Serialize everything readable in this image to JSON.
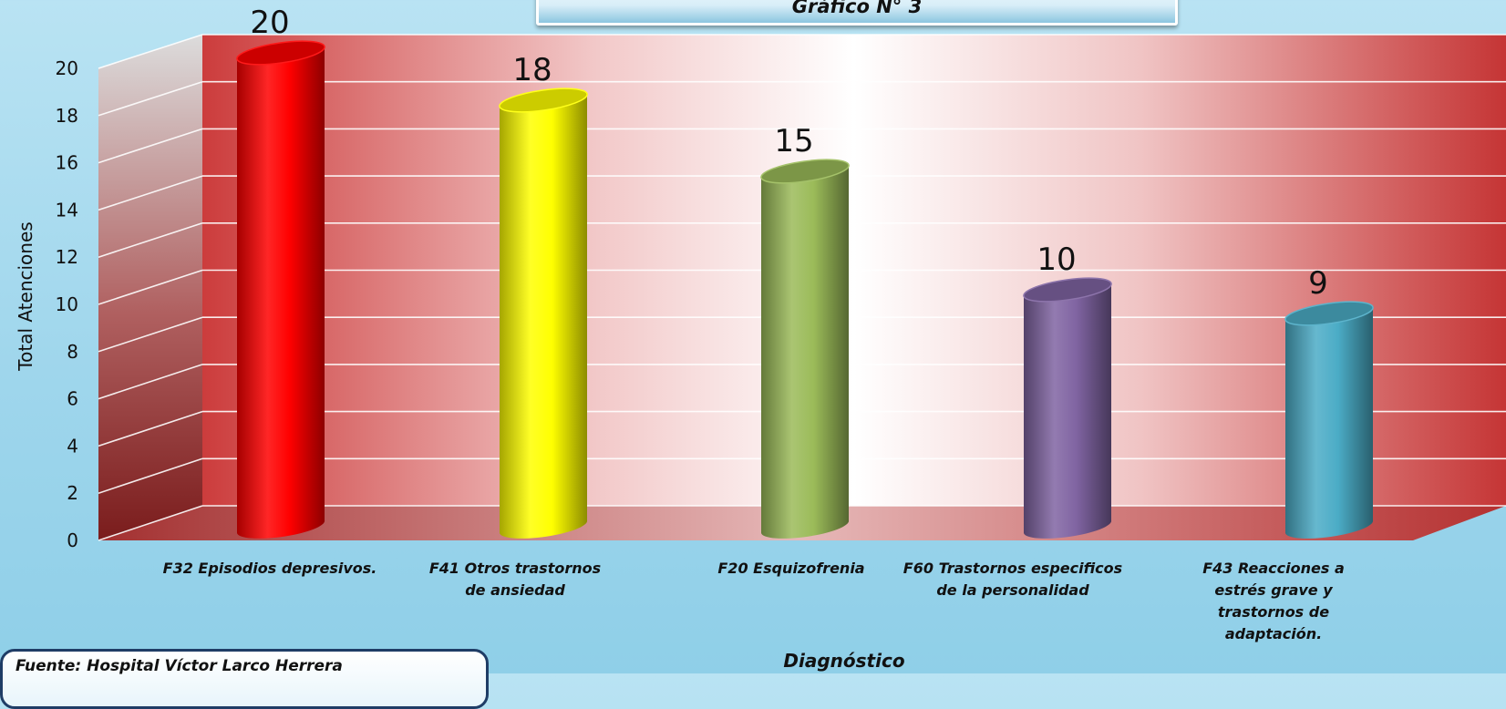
{
  "title": "Gráfico N° 3",
  "source": "Fuente: Hospital Víctor Larco Herrera",
  "chart_data": {
    "type": "bar",
    "categories": [
      "F32 Episodios depresivos.",
      "F41 Otros trastornos de ansiedad",
      "F20 Esquizofrenia",
      "F60 Trastornos especificos de la personalidad",
      "F43 Reacciones a estrés grave y trastornos de adaptación."
    ],
    "values": [
      20,
      18,
      15,
      10,
      9
    ],
    "data_labels": [
      "20",
      "18",
      "15",
      "10",
      "9"
    ],
    "colors": [
      "#ff0000",
      "#ffff00",
      "#9bbb59",
      "#8064a2",
      "#4bacc6"
    ],
    "xlabel": "Diagnóstico",
    "ylabel": "Total Atenciones",
    "ylim": [
      0,
      20
    ],
    "yticks": [
      "0",
      "2",
      "4",
      "6",
      "8",
      "10",
      "12",
      "14",
      "16",
      "18",
      "20"
    ],
    "grid": true,
    "style": "3d-cylinder"
  }
}
